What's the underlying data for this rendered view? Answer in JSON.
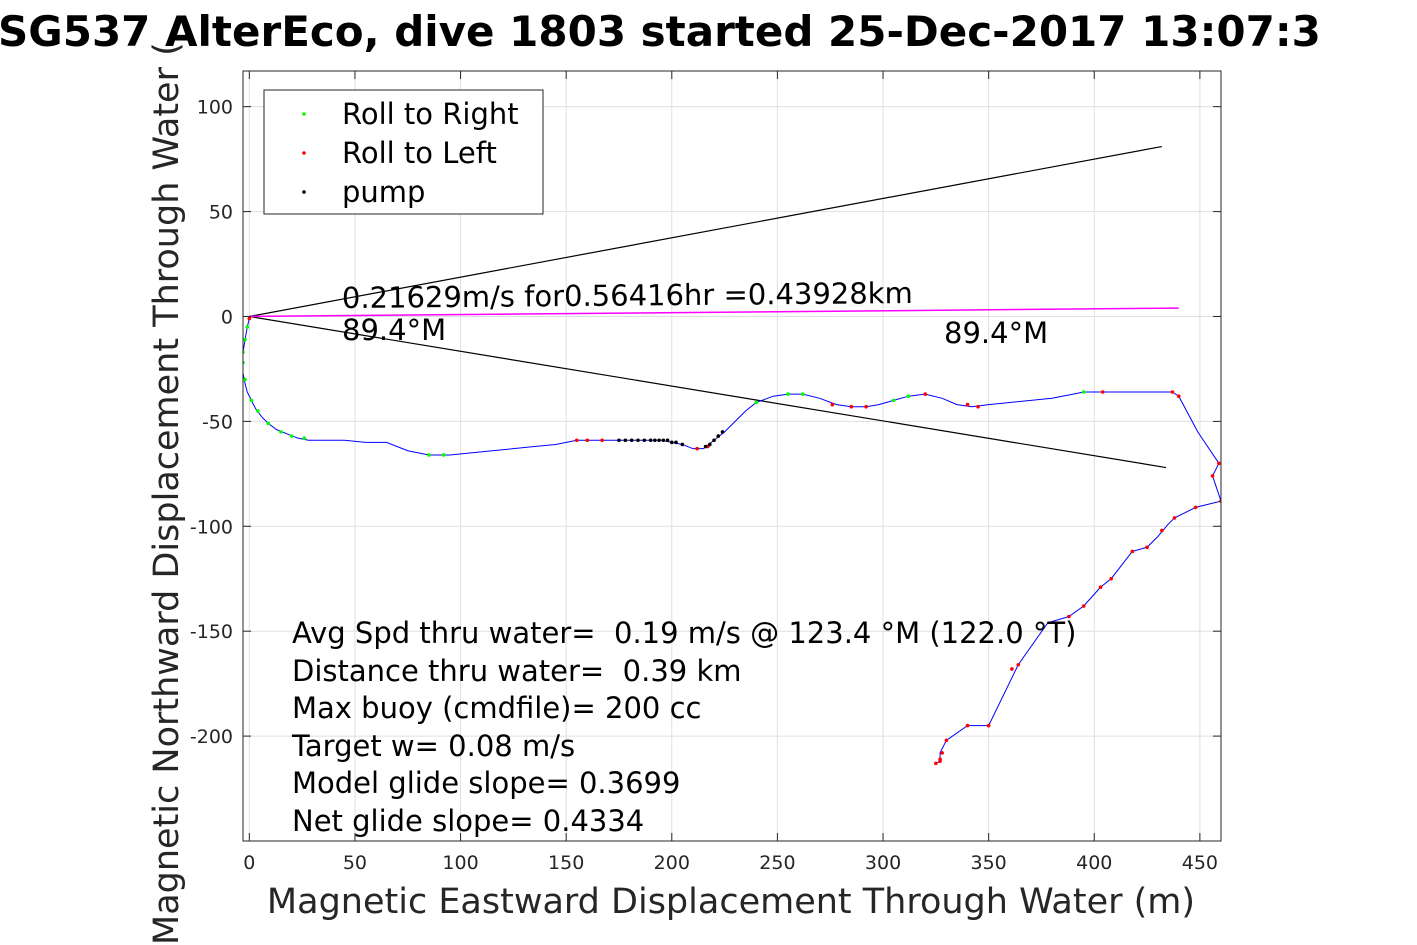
{
  "chart_data": {
    "type": "scatter",
    "title": "SG537 AlterEco, dive 1803 started 25-Dec-2017 13:07:3",
    "xlabel": "Magnetic Eastward Displacement Through Water (m)",
    "ylabel": "Magnetic Northward Displacement Through Water (",
    "xlim": [
      -3,
      460
    ],
    "ylim": [
      -250,
      117
    ],
    "xticks": [
      0,
      50,
      100,
      150,
      200,
      250,
      300,
      350,
      400,
      450
    ],
    "yticks": [
      100,
      50,
      0,
      -50,
      -100,
      -150,
      -200
    ],
    "grid": true,
    "legend": {
      "placement": "top-left",
      "entries": [
        {
          "label": "Roll to Right",
          "color": "#00ff00"
        },
        {
          "label": "Roll to Left",
          "color": "#ff0000"
        },
        {
          "label": "pump",
          "color": "#000000"
        }
      ]
    },
    "colors": {
      "track": "#0000ff",
      "current": "#ff00ff",
      "cone": "#000000"
    },
    "track": [
      [
        0,
        -1
      ],
      [
        -1,
        -5
      ],
      [
        -2,
        -11
      ],
      [
        -3,
        -17
      ],
      [
        -3,
        -22
      ],
      [
        -3,
        -27
      ],
      [
        -2,
        -32
      ],
      [
        -1,
        -36
      ],
      [
        1,
        -40
      ],
      [
        3,
        -44
      ],
      [
        6,
        -48
      ],
      [
        9,
        -51
      ],
      [
        13,
        -54
      ],
      [
        18,
        -56
      ],
      [
        23,
        -58
      ],
      [
        28,
        -59
      ],
      [
        35,
        -59
      ],
      [
        45,
        -59
      ],
      [
        55,
        -60
      ],
      [
        65,
        -60
      ],
      [
        75,
        -64
      ],
      [
        85,
        -66
      ],
      [
        95,
        -66
      ],
      [
        105,
        -65
      ],
      [
        115,
        -64
      ],
      [
        125,
        -63
      ],
      [
        135,
        -62
      ],
      [
        145,
        -61
      ],
      [
        155,
        -59
      ],
      [
        165,
        -59
      ],
      [
        175,
        -59
      ],
      [
        185,
        -59
      ],
      [
        195,
        -59
      ],
      [
        200,
        -60
      ],
      [
        205,
        -61
      ],
      [
        210,
        -63
      ],
      [
        215,
        -63
      ],
      [
        220,
        -59
      ],
      [
        225,
        -55
      ],
      [
        230,
        -50
      ],
      [
        235,
        -45
      ],
      [
        240,
        -41
      ],
      [
        248,
        -38
      ],
      [
        255,
        -37
      ],
      [
        262,
        -37
      ],
      [
        270,
        -39
      ],
      [
        278,
        -42
      ],
      [
        285,
        -43
      ],
      [
        292,
        -43
      ],
      [
        298,
        -42
      ],
      [
        305,
        -40
      ],
      [
        312,
        -38
      ],
      [
        320,
        -37
      ],
      [
        328,
        -39
      ],
      [
        335,
        -42
      ],
      [
        342,
        -43
      ],
      [
        350,
        -42
      ],
      [
        360,
        -41
      ],
      [
        370,
        -40
      ],
      [
        380,
        -39
      ],
      [
        390,
        -37
      ],
      [
        395,
        -36
      ],
      [
        404,
        -36
      ],
      [
        415,
        -36
      ],
      [
        425,
        -36
      ],
      [
        437,
        -36
      ],
      [
        440,
        -38
      ],
      [
        449,
        -55
      ],
      [
        459,
        -70
      ],
      [
        456,
        -76
      ],
      [
        460,
        -88
      ],
      [
        448,
        -91
      ],
      [
        438,
        -96
      ],
      [
        435,
        -99
      ],
      [
        430,
        -105
      ],
      [
        425,
        -110
      ],
      [
        418,
        -112
      ],
      [
        408,
        -125
      ],
      [
        403,
        -129
      ],
      [
        395,
        -138
      ],
      [
        388,
        -143
      ],
      [
        378,
        -146
      ],
      [
        364,
        -166
      ],
      [
        350,
        -195
      ],
      [
        340,
        -195
      ],
      [
        330,
        -202
      ],
      [
        327,
        -208
      ],
      [
        327,
        -212
      ],
      [
        325,
        -213
      ]
    ],
    "roll_right_points": [
      [
        -1,
        -5
      ],
      [
        -2,
        -11
      ],
      [
        -3,
        -17
      ],
      [
        -3,
        -22
      ],
      [
        -2,
        -30
      ],
      [
        1,
        -40
      ],
      [
        4,
        -45
      ],
      [
        9,
        -51
      ],
      [
        15,
        -55
      ],
      [
        20,
        -57
      ],
      [
        26,
        -58
      ],
      [
        85,
        -66
      ],
      [
        92,
        -66
      ],
      [
        240,
        -41
      ],
      [
        255,
        -37
      ],
      [
        262,
        -37
      ],
      [
        305,
        -40
      ],
      [
        312,
        -38
      ],
      [
        395,
        -36
      ]
    ],
    "roll_left_points": [
      [
        0,
        -1
      ],
      [
        155,
        -59
      ],
      [
        160,
        -59
      ],
      [
        167,
        -59
      ],
      [
        212,
        -63
      ],
      [
        217,
        -62
      ],
      [
        276,
        -42
      ],
      [
        285,
        -43
      ],
      [
        292,
        -43
      ],
      [
        320,
        -37
      ],
      [
        340,
        -42
      ],
      [
        345,
        -43
      ],
      [
        404,
        -36
      ],
      [
        437,
        -36
      ],
      [
        440,
        -38
      ],
      [
        456,
        -76
      ],
      [
        459,
        -70
      ],
      [
        460,
        -88
      ],
      [
        448,
        -91
      ],
      [
        438,
        -96
      ],
      [
        432,
        -102
      ],
      [
        425,
        -110
      ],
      [
        418,
        -112
      ],
      [
        408,
        -125
      ],
      [
        403,
        -129
      ],
      [
        395,
        -138
      ],
      [
        388,
        -143
      ],
      [
        364,
        -166
      ],
      [
        361,
        -168
      ],
      [
        350,
        -195
      ],
      [
        340,
        -195
      ],
      [
        330,
        -202
      ],
      [
        328,
        -208
      ],
      [
        327,
        -211
      ],
      [
        327,
        -212
      ],
      [
        325,
        -213
      ]
    ],
    "pump_points": [
      [
        175,
        -59
      ],
      [
        178,
        -59
      ],
      [
        181,
        -59
      ],
      [
        184,
        -59
      ],
      [
        187,
        -59
      ],
      [
        190,
        -59
      ],
      [
        192,
        -59
      ],
      [
        194,
        -59
      ],
      [
        196,
        -59
      ],
      [
        198,
        -59
      ],
      [
        200,
        -60
      ],
      [
        202,
        -60
      ],
      [
        205,
        -61
      ],
      [
        216,
        -62
      ],
      [
        218,
        -61
      ],
      [
        220,
        -59
      ],
      [
        222,
        -57
      ],
      [
        224,
        -55
      ]
    ],
    "current_line": [
      [
        0,
        0
      ],
      [
        440,
        4
      ]
    ],
    "cone_lines": [
      [
        [
          0,
          0
        ],
        [
          432,
          81
        ]
      ],
      [
        [
          0,
          0
        ],
        [
          434,
          -72
        ]
      ]
    ],
    "annotations": {
      "current_text": "0.21629m/s for0.56416hr =0.43928km",
      "heading_start": "89.4°M",
      "heading_end": "89.4°M",
      "stats": [
        "Avg Spd thru water=  0.19 m/s @ 123.4 °M (122.0 °T)",
        "Distance thru water=  0.39 km",
        "Max buoy (cmdfile)= 200 cc",
        "Target w= 0.08 m/s",
        "Model glide slope= 0.3699",
        "Net glide slope= 0.4334"
      ]
    }
  }
}
